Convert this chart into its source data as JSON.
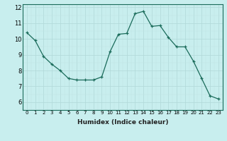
{
  "x": [
    0,
    1,
    2,
    3,
    4,
    5,
    6,
    7,
    8,
    9,
    10,
    11,
    12,
    13,
    14,
    15,
    16,
    17,
    18,
    19,
    20,
    21,
    22,
    23
  ],
  "y": [
    10.4,
    9.9,
    8.9,
    8.4,
    8.0,
    7.5,
    7.4,
    7.4,
    7.4,
    7.6,
    9.2,
    10.3,
    10.35,
    11.6,
    11.75,
    10.8,
    10.85,
    10.1,
    9.5,
    9.5,
    8.6,
    7.5,
    6.4,
    6.2
  ],
  "xlabel": "Humidex (Indice chaleur)",
  "ylim": [
    5.5,
    12.2
  ],
  "xlim": [
    -0.5,
    23.5
  ],
  "yticks": [
    6,
    7,
    8,
    9,
    10,
    11,
    12
  ],
  "xticks": [
    0,
    1,
    2,
    3,
    4,
    5,
    6,
    7,
    8,
    9,
    10,
    11,
    12,
    13,
    14,
    15,
    16,
    17,
    18,
    19,
    20,
    21,
    22,
    23
  ],
  "xtick_labels": [
    "0",
    "1",
    "2",
    "3",
    "4",
    "5",
    "6",
    "7",
    "8",
    "9",
    "10",
    "11",
    "12",
    "13",
    "14",
    "15",
    "16",
    "17",
    "18",
    "19",
    "20",
    "21",
    "22",
    "23"
  ],
  "line_color": "#1a6b5a",
  "bg_color": "#c8eeee",
  "grid_color_major": "#b0d8d8",
  "grid_color_minor": "#c0e4e4",
  "marker": "+"
}
